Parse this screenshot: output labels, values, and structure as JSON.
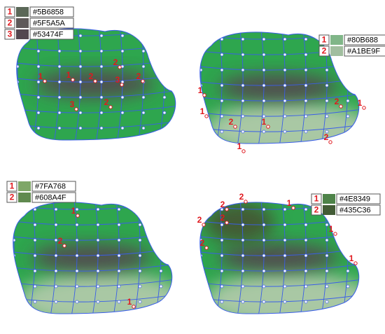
{
  "panels": [
    {
      "swatches": [
        {
          "number": "1",
          "hex": "#5B6858"
        },
        {
          "number": "2",
          "hex": "#5F5A5A"
        },
        {
          "number": "3",
          "hex": "#53474F"
        }
      ],
      "markers": [
        "1",
        "1",
        "2",
        "2",
        "3",
        "2",
        "3",
        "2"
      ]
    },
    {
      "swatches": [
        {
          "number": "1",
          "hex": "#80B688"
        },
        {
          "number": "2",
          "hex": "#A1BE9F"
        }
      ],
      "markers": [
        "1",
        "1",
        "2",
        "1",
        "1",
        "2",
        "1",
        "2"
      ]
    },
    {
      "swatches": [
        {
          "number": "1",
          "hex": "#7FA768"
        },
        {
          "number": "2",
          "hex": "#608A4F"
        }
      ],
      "markers": [
        "1",
        "2",
        "1"
      ]
    },
    {
      "swatches": [
        {
          "number": "1",
          "hex": "#4E8349"
        },
        {
          "number": "2",
          "hex": "#435C36"
        }
      ],
      "markers": [
        "2",
        "2",
        "2",
        "2",
        "2",
        "1",
        "1",
        "1"
      ]
    }
  ]
}
